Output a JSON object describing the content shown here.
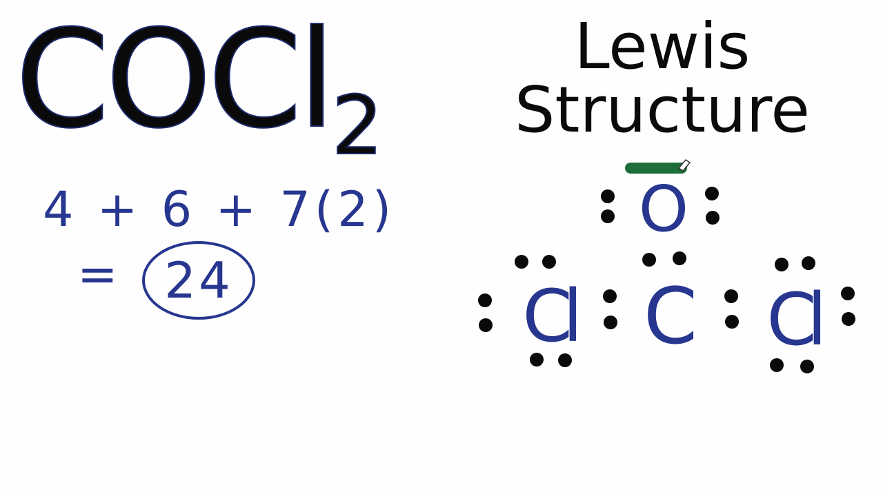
{
  "formula": {
    "base": "COCl",
    "subscript": "2"
  },
  "title": {
    "line1": "Lewis",
    "line2": "Structure"
  },
  "calculation": {
    "line1": "4 + 6 + 7(2)",
    "equals": "=",
    "total": "24"
  },
  "structure": {
    "top_atom": "O",
    "center_atom": "C",
    "left_atom": "Cl",
    "right_atom": "Cl"
  },
  "colors": {
    "ink": "#27368f",
    "dot": "#0a0a0a",
    "highlight": "#1e6e3a",
    "text": "#0a0a0a"
  }
}
